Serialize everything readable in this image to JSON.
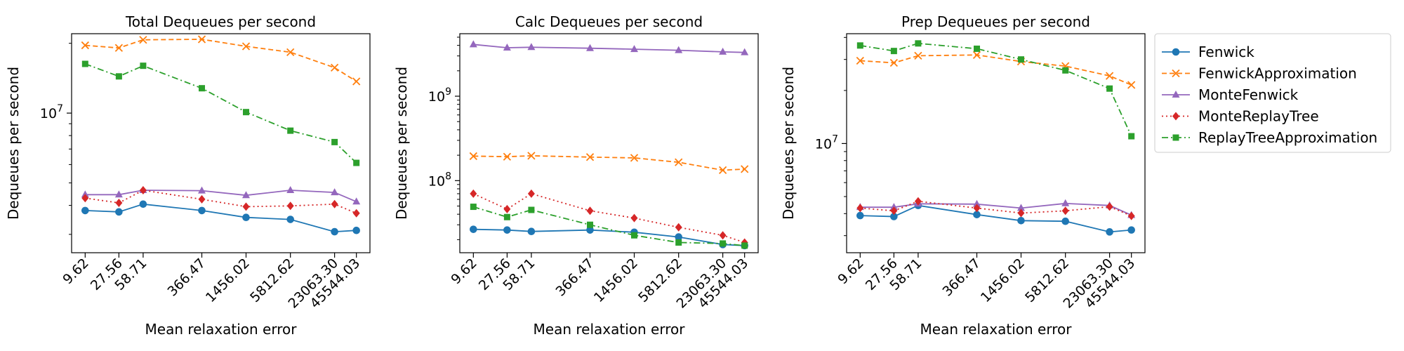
{
  "chart_data": [
    {
      "type": "line",
      "title": "Total Dequeues per second",
      "xlabel": "Mean relaxation error",
      "ylabel": "Dequeues per second",
      "x": [
        9.62,
        27.56,
        58.71,
        366.47,
        1456.02,
        5812.62,
        23063.3,
        45544.03
      ],
      "x_tick_labels": [
        "9.62",
        "27.56",
        "58.71",
        "366.47",
        "1456.02",
        "5812.62",
        "23063.30",
        "45544.03"
      ],
      "x_scale": "log",
      "y_scale": "log",
      "ylim": [
        2500000,
        22000000
      ],
      "y_major_ticks": [
        {
          "value": 10000000,
          "base": "10",
          "exp": "7"
        }
      ],
      "grid": false,
      "series": [
        {
          "name": "Fenwick",
          "values": [
            3800000,
            3750000,
            4050000,
            3800000,
            3550000,
            3480000,
            3080000,
            3120000
          ]
        },
        {
          "name": "FenwickApproximation",
          "values": [
            19600000,
            19100000,
            20700000,
            20800000,
            19400000,
            18300000,
            15700000,
            13700000
          ]
        },
        {
          "name": "MonteFenwick",
          "values": [
            4450000,
            4450000,
            4650000,
            4630000,
            4420000,
            4650000,
            4550000,
            4150000
          ]
        },
        {
          "name": "MonteReplayTree",
          "values": [
            4300000,
            4100000,
            4650000,
            4250000,
            3950000,
            3980000,
            4050000,
            3700000
          ]
        },
        {
          "name": "ReplayTreeApproximation",
          "values": [
            16300000,
            14400000,
            16000000,
            12800000,
            10100000,
            8400000,
            7500000,
            6100000
          ]
        }
      ]
    },
    {
      "type": "line",
      "title": "Calc Dequeues per second",
      "xlabel": "Mean relaxation error",
      "ylabel": "Dequeues per second",
      "x": [
        9.62,
        27.56,
        58.71,
        366.47,
        1456.02,
        5812.62,
        23063.3,
        45544.03
      ],
      "x_tick_labels": [
        "9.62",
        "27.56",
        "58.71",
        "366.47",
        "1456.02",
        "5812.62",
        "23063.30",
        "45544.03"
      ],
      "x_scale": "log",
      "y_scale": "log",
      "ylim": [
        14000000,
        5500000000
      ],
      "y_major_ticks": [
        {
          "value": 100000000,
          "base": "10",
          "exp": "8"
        },
        {
          "value": 1000000000,
          "base": "10",
          "exp": "9"
        }
      ],
      "grid": false,
      "series": [
        {
          "name": "Fenwick",
          "values": [
            26500000,
            26000000,
            25000000,
            26000000,
            24500000,
            21500000,
            17500000,
            17000000
          ]
        },
        {
          "name": "FenwickApproximation",
          "values": [
            195000000,
            192000000,
            197000000,
            190000000,
            186000000,
            165000000,
            133000000,
            137000000
          ]
        },
        {
          "name": "MonteFenwick",
          "values": [
            4100000000,
            3750000000,
            3800000000,
            3700000000,
            3600000000,
            3500000000,
            3350000000,
            3300000000
          ]
        },
        {
          "name": "MonteReplayTree",
          "values": [
            70000000,
            46000000,
            70000000,
            44000000,
            36000000,
            28000000,
            22500000,
            18500000
          ]
        },
        {
          "name": "ReplayTreeApproximation",
          "values": [
            49000000,
            37000000,
            45000000,
            30000000,
            22500000,
            18500000,
            18000000,
            17000000
          ]
        }
      ]
    },
    {
      "type": "line",
      "title": "Prep Dequeues per second",
      "xlabel": "Mean relaxation error",
      "ylabel": "Dequeues per second",
      "x": [
        9.62,
        27.56,
        58.71,
        366.47,
        1456.02,
        5812.62,
        23063.3,
        45544.03
      ],
      "x_tick_labels": [
        "9.62",
        "27.56",
        "58.71",
        "366.47",
        "1456.02",
        "5812.62",
        "23063.30",
        "45544.03"
      ],
      "x_scale": "log",
      "y_scale": "log",
      "ylim": [
        2400000,
        42000000
      ],
      "y_major_ticks": [
        {
          "value": 10000000,
          "base": "10",
          "exp": "7"
        }
      ],
      "grid": false,
      "legend": "outside-right",
      "series": [
        {
          "name": "Fenwick",
          "values": [
            3900000,
            3850000,
            4450000,
            3950000,
            3650000,
            3620000,
            3150000,
            3230000
          ]
        },
        {
          "name": "FenwickApproximation",
          "values": [
            29500000,
            28700000,
            31500000,
            31800000,
            29200000,
            27500000,
            24200000,
            21500000
          ]
        },
        {
          "name": "MonteFenwick",
          "values": [
            4350000,
            4350000,
            4550000,
            4530000,
            4300000,
            4570000,
            4450000,
            3920000
          ]
        },
        {
          "name": "MonteReplayTree",
          "values": [
            4300000,
            4150000,
            4700000,
            4300000,
            4030000,
            4150000,
            4380000,
            3880000
          ]
        },
        {
          "name": "ReplayTreeApproximation",
          "values": [
            36000000,
            33500000,
            37000000,
            34500000,
            30000000,
            26000000,
            20500000,
            11000000
          ]
        }
      ]
    }
  ],
  "series_styles": [
    {
      "name": "Fenwick",
      "color": "#1f77b4",
      "dash": "",
      "marker": "circle"
    },
    {
      "name": "FenwickApproximation",
      "color": "#ff7f0e",
      "dash": "7 4",
      "marker": "x"
    },
    {
      "name": "MonteFenwick",
      "color": "#9467bd",
      "dash": "",
      "marker": "triangle"
    },
    {
      "name": "MonteReplayTree",
      "color": "#d62728",
      "dash": "2 4",
      "marker": "diamond"
    },
    {
      "name": "ReplayTreeApproximation",
      "color": "#2ca02c",
      "dash": "9 4 2 4",
      "marker": "square"
    }
  ]
}
